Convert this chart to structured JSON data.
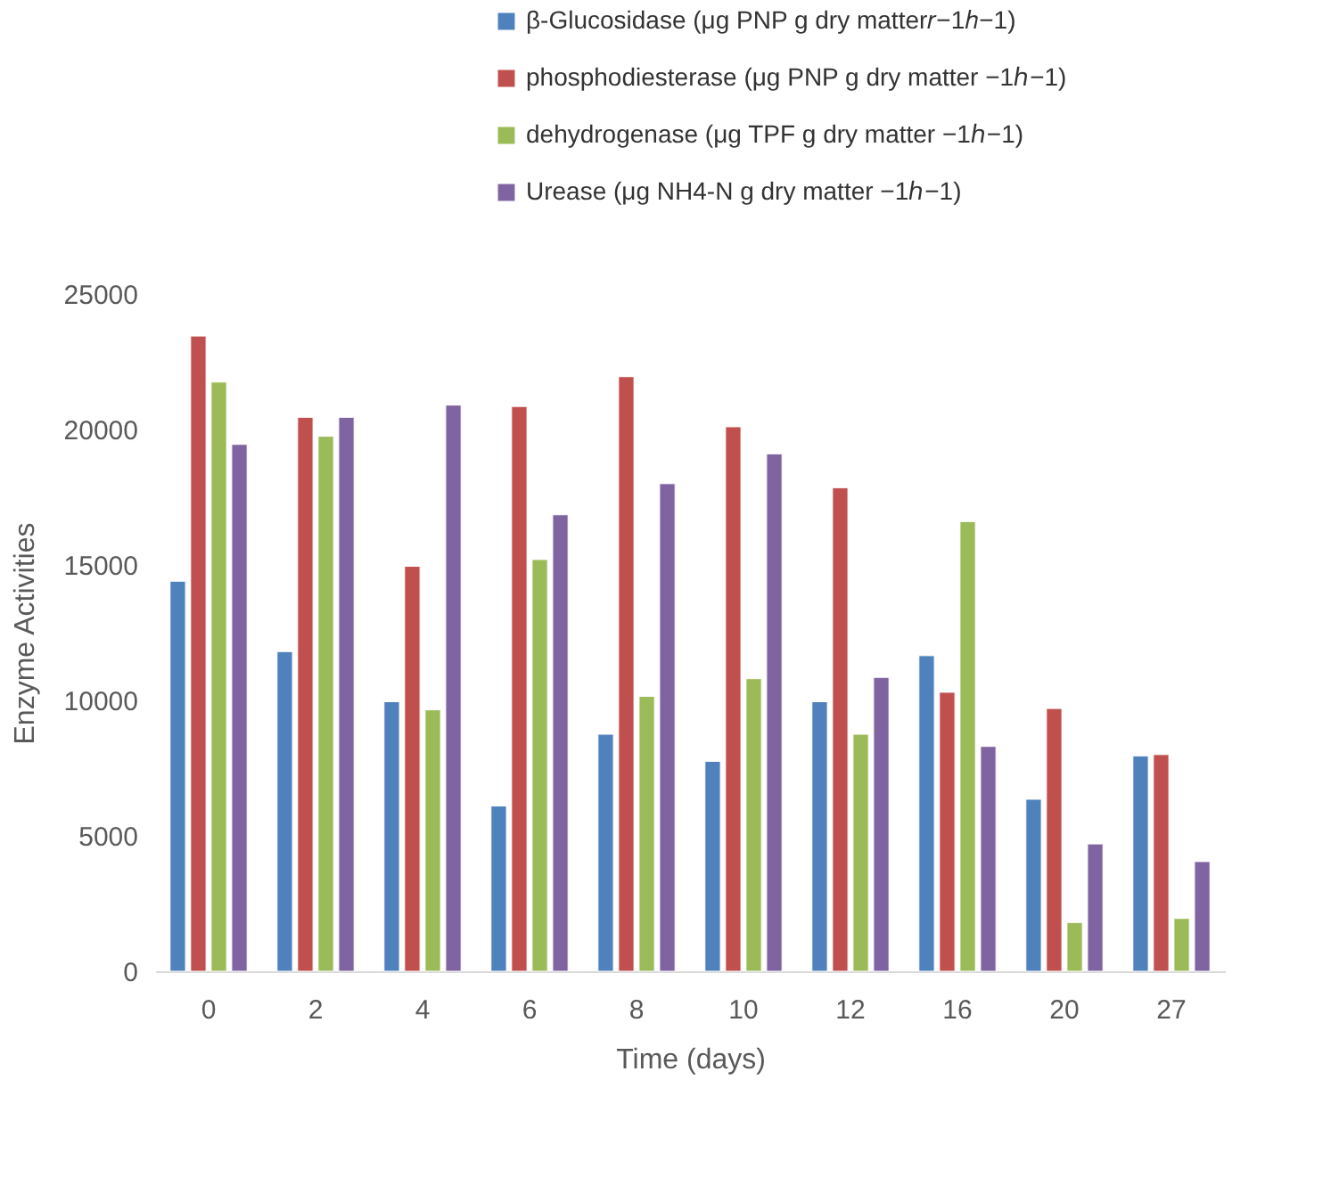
{
  "chart_data": {
    "type": "bar",
    "xlabel": "Time (days)",
    "ylabel": "Enzyme Activities",
    "categories": [
      "0",
      "2",
      "4",
      "6",
      "8",
      "10",
      "12",
      "16",
      "20",
      "27"
    ],
    "series": [
      {
        "name": "β-Glucosidase (μg PNP g dry matter𝑟−1ℎ−1)",
        "color": "#4f81bd",
        "values": [
          14400,
          11800,
          9950,
          6100,
          8750,
          7750,
          9950,
          11650,
          6350,
          7950
        ]
      },
      {
        "name": "phosphodiesterase (μg PNP g dry matter −1ℎ−1)",
        "color": "#c0504d",
        "values": [
          23450,
          20450,
          14950,
          20850,
          21950,
          20100,
          17850,
          10300,
          9700,
          8000
        ]
      },
      {
        "name": "dehydrogenase (μg TPF g dry matter −1ℎ−1)",
        "color": "#9bbb59",
        "values": [
          21750,
          19750,
          9650,
          15200,
          10150,
          10800,
          8750,
          16600,
          1800,
          1950
        ]
      },
      {
        "name": "Urease (μg NH4-N g dry matter −1ℎ−1)",
        "color": "#8064a2",
        "values": [
          19450,
          20450,
          20900,
          16850,
          18000,
          19100,
          10850,
          8300,
          4700,
          4050
        ]
      }
    ],
    "ylim": [
      0,
      25000
    ],
    "yticks": [
      0,
      5000,
      10000,
      15000,
      20000,
      25000
    ],
    "grid": false,
    "legend": "top right"
  }
}
